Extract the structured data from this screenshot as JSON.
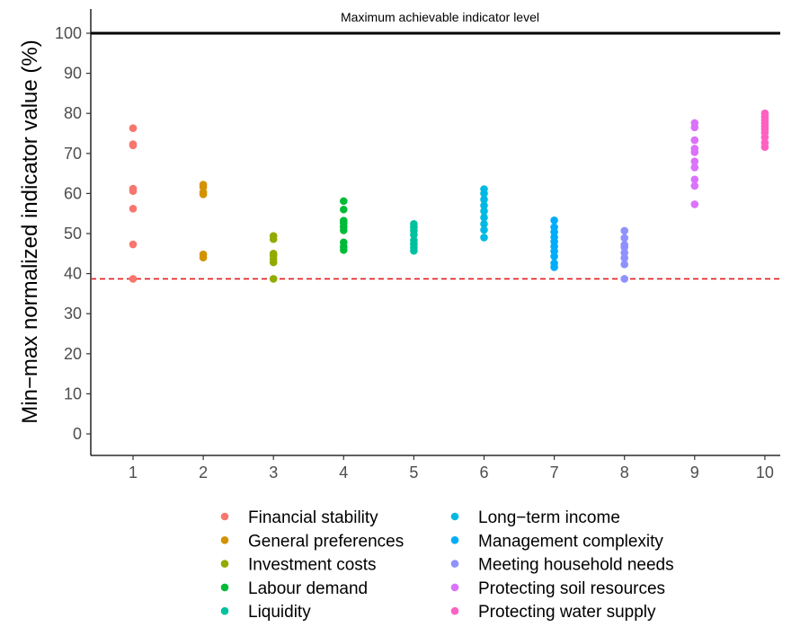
{
  "chart_data": {
    "type": "scatter",
    "ylabel": "Min−max normalized indicator value (%)",
    "xlabel": "",
    "x_ticks": [
      "1",
      "2",
      "3",
      "4",
      "5",
      "6",
      "7",
      "8",
      "9",
      "10"
    ],
    "y_ticks": [
      "0",
      "10",
      "20",
      "30",
      "40",
      "50",
      "60",
      "70",
      "80",
      "90",
      "100"
    ],
    "xlim": [
      0.5,
      10.5
    ],
    "ylim": [
      -5,
      106
    ],
    "grid": false,
    "legend_position": "bottom",
    "reference_lines": [
      {
        "y": 100,
        "style": "solid",
        "color": "#000000",
        "label": "Maximum achievable indicator level"
      },
      {
        "y": 38.7,
        "style": "dashed",
        "color": "#e41a1c",
        "label": ""
      }
    ],
    "series": [
      {
        "name": "Financial stability",
        "color": "#F8766D",
        "x": 1,
        "values": [
          38.7,
          47.3,
          56.2,
          60.6,
          61.2,
          72.0,
          72.3,
          76.3
        ]
      },
      {
        "name": "General preferences",
        "color": "#D39200",
        "x": 2,
        "values": [
          44.0,
          44.8,
          59.8,
          60.3,
          61.6,
          62.2
        ]
      },
      {
        "name": "Investment costs",
        "color": "#93AA00",
        "x": 3,
        "values": [
          38.7,
          42.8,
          43.6,
          44.5,
          45.0,
          48.6,
          49.4
        ]
      },
      {
        "name": "Labour demand",
        "color": "#00BA38",
        "x": 4,
        "values": [
          45.9,
          46.7,
          47.8,
          50.8,
          51.7,
          52.6,
          53.2,
          56.0,
          58.1
        ]
      },
      {
        "name": "Liquidity",
        "color": "#00C19F",
        "x": 5,
        "values": [
          45.7,
          46.5,
          47.4,
          48.3,
          49.7,
          50.7,
          51.6,
          52.4
        ]
      },
      {
        "name": "Long−term income",
        "color": "#00B9E3",
        "x": 6,
        "values": [
          49.0,
          50.9,
          52.4,
          54.0,
          55.6,
          57.0,
          58.5,
          60.0,
          61.1
        ]
      },
      {
        "name": "Management complexity",
        "color": "#00ADFA",
        "x": 7,
        "values": [
          41.6,
          42.6,
          44.3,
          45.6,
          46.8,
          48.0,
          49.1,
          50.4,
          51.6,
          53.3
        ]
      },
      {
        "name": "Meeting household needs",
        "color": "#8F91FF",
        "x": 8,
        "values": [
          38.7,
          42.3,
          43.9,
          45.2,
          46.6,
          47.2,
          48.9,
          50.7
        ]
      },
      {
        "name": "Protecting soil resources",
        "color": "#DB72FB",
        "x": 9,
        "values": [
          57.3,
          61.9,
          63.5,
          66.5,
          68.0,
          70.3,
          71.2,
          73.3,
          76.5,
          77.6
        ]
      },
      {
        "name": "Protecting water supply",
        "color": "#FF61C3",
        "x": 10,
        "values": [
          71.6,
          72.7,
          74.0,
          75.2,
          76.0,
          76.7,
          77.5,
          78.3,
          79.1,
          80.0
        ]
      }
    ]
  }
}
